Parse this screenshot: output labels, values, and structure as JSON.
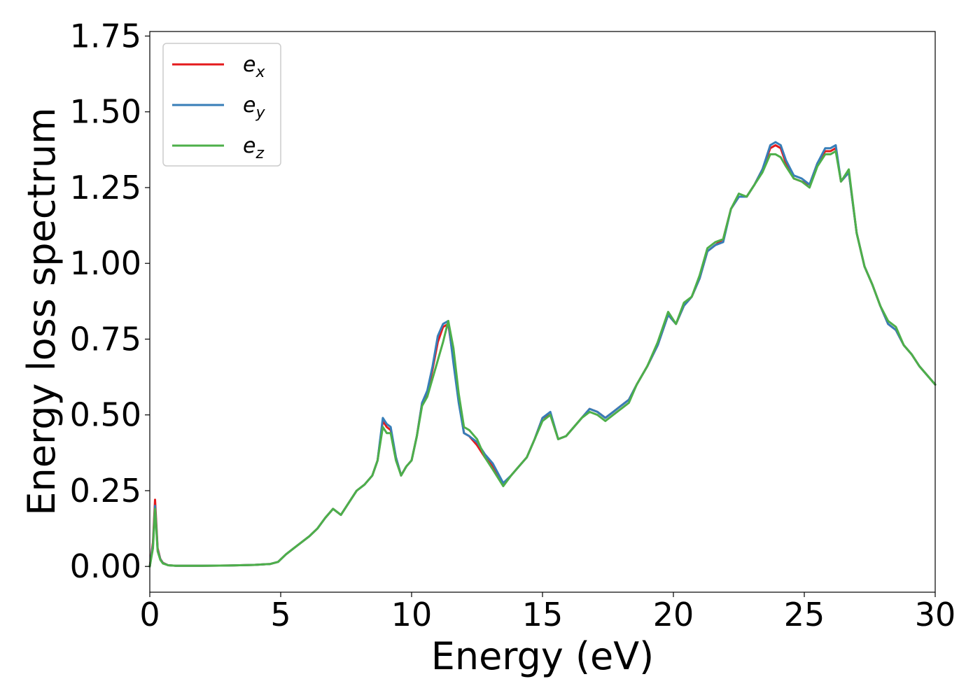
{
  "chart_data": {
    "type": "line",
    "title": "",
    "xlabel": "Energy (eV)",
    "ylabel": "Energy loss spectrum",
    "xlim": [
      0,
      30
    ],
    "ylim": [
      -0.085,
      1.765
    ],
    "xticks": [
      0,
      5,
      10,
      15,
      20,
      25,
      30
    ],
    "xtick_labels": [
      "0",
      "5",
      "10",
      "15",
      "20",
      "25",
      "30"
    ],
    "yticks": [
      0.0,
      0.25,
      0.5,
      0.75,
      1.0,
      1.25,
      1.5,
      1.75
    ],
    "ytick_labels": [
      "0.00",
      "0.25",
      "0.50",
      "0.75",
      "1.00",
      "1.25",
      "1.50",
      "1.75"
    ],
    "grid": false,
    "legend_position": "top-left",
    "series": [
      {
        "name": "e",
        "subscript": "x",
        "color": "#e41a1c",
        "x": [
          0,
          0.12,
          0.2,
          0.3,
          0.4,
          0.5,
          0.7,
          1.0,
          2.0,
          3.0,
          4.0,
          4.6,
          4.9,
          5.2,
          5.5,
          5.8,
          6.1,
          6.4,
          6.7,
          7.0,
          7.3,
          7.6,
          7.9,
          8.2,
          8.5,
          8.7,
          8.9,
          9.05,
          9.2,
          9.4,
          9.6,
          9.8,
          10.0,
          10.2,
          10.4,
          10.6,
          10.8,
          11.0,
          11.2,
          11.4,
          11.6,
          11.8,
          12.0,
          12.2,
          12.5,
          12.8,
          13.1,
          13.5,
          13.8,
          14.1,
          14.4,
          14.7,
          15.0,
          15.3,
          15.6,
          15.9,
          16.2,
          16.5,
          16.8,
          17.1,
          17.4,
          17.7,
          18.0,
          18.3,
          18.6,
          19.0,
          19.4,
          19.8,
          20.1,
          20.4,
          20.7,
          21.0,
          21.3,
          21.6,
          21.9,
          22.2,
          22.5,
          22.8,
          23.1,
          23.4,
          23.7,
          23.9,
          24.1,
          24.3,
          24.6,
          24.9,
          25.2,
          25.5,
          25.8,
          26.0,
          26.2,
          26.4,
          26.7,
          27.0,
          27.3,
          27.6,
          27.9,
          28.2,
          28.5,
          28.8,
          29.1,
          29.4,
          29.7,
          30.0
        ],
        "y": [
          0.0,
          0.08,
          0.22,
          0.06,
          0.025,
          0.012,
          0.004,
          0.002,
          0.002,
          0.003,
          0.005,
          0.008,
          0.015,
          0.04,
          0.06,
          0.08,
          0.1,
          0.125,
          0.16,
          0.19,
          0.17,
          0.21,
          0.25,
          0.27,
          0.3,
          0.35,
          0.48,
          0.46,
          0.45,
          0.36,
          0.3,
          0.33,
          0.35,
          0.43,
          0.54,
          0.57,
          0.65,
          0.74,
          0.79,
          0.8,
          0.68,
          0.55,
          0.44,
          0.43,
          0.4,
          0.36,
          0.33,
          0.27,
          0.3,
          0.33,
          0.36,
          0.42,
          0.49,
          0.5,
          0.42,
          0.43,
          0.46,
          0.49,
          0.52,
          0.51,
          0.49,
          0.51,
          0.53,
          0.55,
          0.6,
          0.66,
          0.73,
          0.83,
          0.8,
          0.86,
          0.89,
          0.95,
          1.04,
          1.06,
          1.08,
          1.18,
          1.22,
          1.22,
          1.26,
          1.31,
          1.38,
          1.39,
          1.38,
          1.33,
          1.28,
          1.27,
          1.26,
          1.33,
          1.37,
          1.37,
          1.38,
          1.27,
          1.3,
          1.1,
          0.99,
          0.93,
          0.86,
          0.8,
          0.78,
          0.73,
          0.7,
          0.66,
          0.63,
          0.6
        ]
      },
      {
        "name": "e",
        "subscript": "y",
        "color": "#377eb8",
        "x": [
          0,
          0.12,
          0.2,
          0.3,
          0.4,
          0.5,
          0.7,
          1.0,
          2.0,
          3.0,
          4.0,
          4.6,
          4.9,
          5.2,
          5.5,
          5.8,
          6.1,
          6.4,
          6.7,
          7.0,
          7.3,
          7.6,
          7.9,
          8.2,
          8.5,
          8.7,
          8.9,
          9.05,
          9.2,
          9.4,
          9.6,
          9.8,
          10.0,
          10.2,
          10.4,
          10.6,
          10.8,
          11.0,
          11.2,
          11.4,
          11.6,
          11.8,
          12.0,
          12.2,
          12.5,
          12.8,
          13.1,
          13.5,
          13.8,
          14.1,
          14.4,
          14.7,
          15.0,
          15.3,
          15.6,
          15.9,
          16.2,
          16.5,
          16.8,
          17.1,
          17.4,
          17.7,
          18.0,
          18.3,
          18.6,
          19.0,
          19.4,
          19.8,
          20.1,
          20.4,
          20.7,
          21.0,
          21.3,
          21.6,
          21.9,
          22.2,
          22.5,
          22.8,
          23.1,
          23.4,
          23.7,
          23.9,
          24.1,
          24.3,
          24.6,
          24.9,
          25.2,
          25.5,
          25.8,
          26.0,
          26.2,
          26.4,
          26.7,
          27.0,
          27.3,
          27.6,
          27.9,
          28.2,
          28.5,
          28.8,
          29.1,
          29.4,
          29.7,
          30.0
        ],
        "y": [
          0.0,
          0.07,
          0.2,
          0.055,
          0.024,
          0.011,
          0.004,
          0.002,
          0.002,
          0.003,
          0.005,
          0.008,
          0.015,
          0.04,
          0.06,
          0.08,
          0.1,
          0.125,
          0.16,
          0.19,
          0.17,
          0.21,
          0.25,
          0.27,
          0.3,
          0.35,
          0.49,
          0.47,
          0.46,
          0.36,
          0.3,
          0.33,
          0.35,
          0.43,
          0.54,
          0.58,
          0.66,
          0.76,
          0.8,
          0.81,
          0.67,
          0.54,
          0.44,
          0.43,
          0.41,
          0.37,
          0.34,
          0.275,
          0.3,
          0.33,
          0.36,
          0.42,
          0.49,
          0.51,
          0.42,
          0.43,
          0.46,
          0.49,
          0.52,
          0.51,
          0.49,
          0.51,
          0.53,
          0.55,
          0.6,
          0.66,
          0.73,
          0.83,
          0.8,
          0.86,
          0.89,
          0.95,
          1.04,
          1.06,
          1.07,
          1.18,
          1.22,
          1.22,
          1.26,
          1.31,
          1.39,
          1.4,
          1.39,
          1.34,
          1.29,
          1.28,
          1.26,
          1.33,
          1.38,
          1.38,
          1.39,
          1.27,
          1.3,
          1.1,
          0.99,
          0.93,
          0.86,
          0.8,
          0.78,
          0.73,
          0.7,
          0.66,
          0.63,
          0.6
        ]
      },
      {
        "name": "e",
        "subscript": "z",
        "color": "#4daf4a",
        "x": [
          0,
          0.12,
          0.2,
          0.3,
          0.4,
          0.5,
          0.7,
          1.0,
          2.0,
          3.0,
          4.0,
          4.6,
          4.9,
          5.2,
          5.5,
          5.8,
          6.1,
          6.4,
          6.7,
          7.0,
          7.3,
          7.6,
          7.9,
          8.2,
          8.5,
          8.7,
          8.9,
          9.05,
          9.2,
          9.4,
          9.6,
          9.8,
          10.0,
          10.2,
          10.4,
          10.6,
          10.8,
          11.0,
          11.2,
          11.4,
          11.6,
          11.8,
          12.0,
          12.2,
          12.5,
          12.8,
          13.1,
          13.5,
          13.8,
          14.1,
          14.4,
          14.7,
          15.0,
          15.3,
          15.6,
          15.9,
          16.2,
          16.5,
          16.8,
          17.1,
          17.4,
          17.7,
          18.0,
          18.3,
          18.6,
          19.0,
          19.4,
          19.8,
          20.1,
          20.4,
          20.7,
          21.0,
          21.3,
          21.6,
          21.9,
          22.2,
          22.5,
          22.8,
          23.1,
          23.4,
          23.7,
          23.9,
          24.1,
          24.3,
          24.6,
          24.9,
          25.2,
          25.5,
          25.8,
          26.0,
          26.2,
          26.4,
          26.7,
          27.0,
          27.3,
          27.6,
          27.9,
          28.2,
          28.5,
          28.8,
          29.1,
          29.4,
          29.7,
          30.0
        ],
        "y": [
          0.0,
          0.06,
          0.19,
          0.05,
          0.022,
          0.01,
          0.004,
          0.002,
          0.002,
          0.003,
          0.005,
          0.008,
          0.015,
          0.04,
          0.06,
          0.08,
          0.1,
          0.125,
          0.16,
          0.19,
          0.17,
          0.21,
          0.25,
          0.27,
          0.3,
          0.35,
          0.46,
          0.44,
          0.44,
          0.35,
          0.3,
          0.33,
          0.35,
          0.43,
          0.53,
          0.56,
          0.62,
          0.68,
          0.74,
          0.81,
          0.72,
          0.57,
          0.46,
          0.45,
          0.42,
          0.36,
          0.32,
          0.265,
          0.3,
          0.33,
          0.36,
          0.42,
          0.48,
          0.5,
          0.42,
          0.43,
          0.46,
          0.49,
          0.51,
          0.5,
          0.48,
          0.5,
          0.52,
          0.54,
          0.6,
          0.66,
          0.74,
          0.84,
          0.8,
          0.87,
          0.89,
          0.96,
          1.05,
          1.07,
          1.08,
          1.18,
          1.23,
          1.22,
          1.26,
          1.3,
          1.36,
          1.36,
          1.35,
          1.32,
          1.28,
          1.27,
          1.25,
          1.32,
          1.36,
          1.36,
          1.37,
          1.27,
          1.31,
          1.1,
          0.99,
          0.93,
          0.86,
          0.81,
          0.79,
          0.73,
          0.7,
          0.66,
          0.63,
          0.6
        ]
      }
    ]
  }
}
